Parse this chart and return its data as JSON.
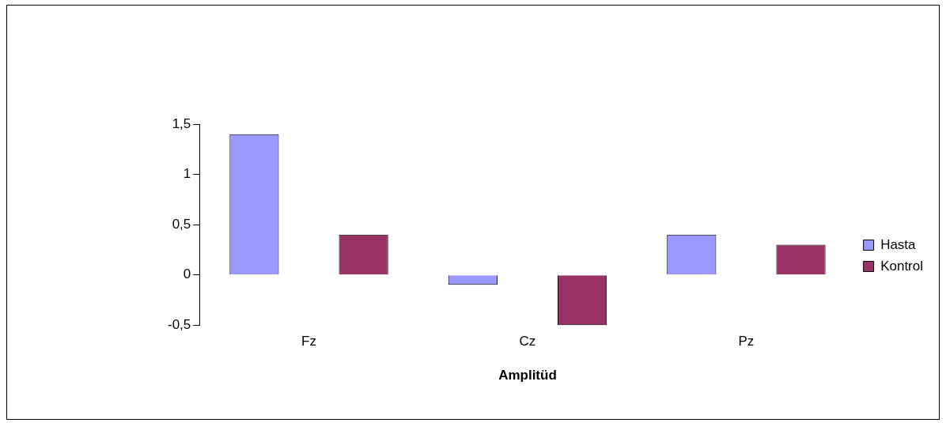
{
  "chart_data": {
    "type": "bar",
    "xlabel": "Amplitüd",
    "categories": [
      "Fz",
      "Cz",
      "Pz"
    ],
    "series": [
      {
        "name": "Hasta",
        "color": "#9999ff",
        "values": [
          1.4,
          -0.1,
          0.4
        ]
      },
      {
        "name": "Kontrol",
        "color": "#993366",
        "values": [
          0.4,
          -0.5,
          0.3
        ]
      }
    ],
    "ylim": [
      -0.5,
      1.5
    ],
    "yticks": [
      {
        "value": -0.5,
        "label": "-0,5"
      },
      0,
      {
        "value": 0.5,
        "label": "0,5"
      },
      1,
      {
        "value": 1.5,
        "label": "1,5"
      }
    ],
    "grid": false,
    "legend": "right"
  }
}
